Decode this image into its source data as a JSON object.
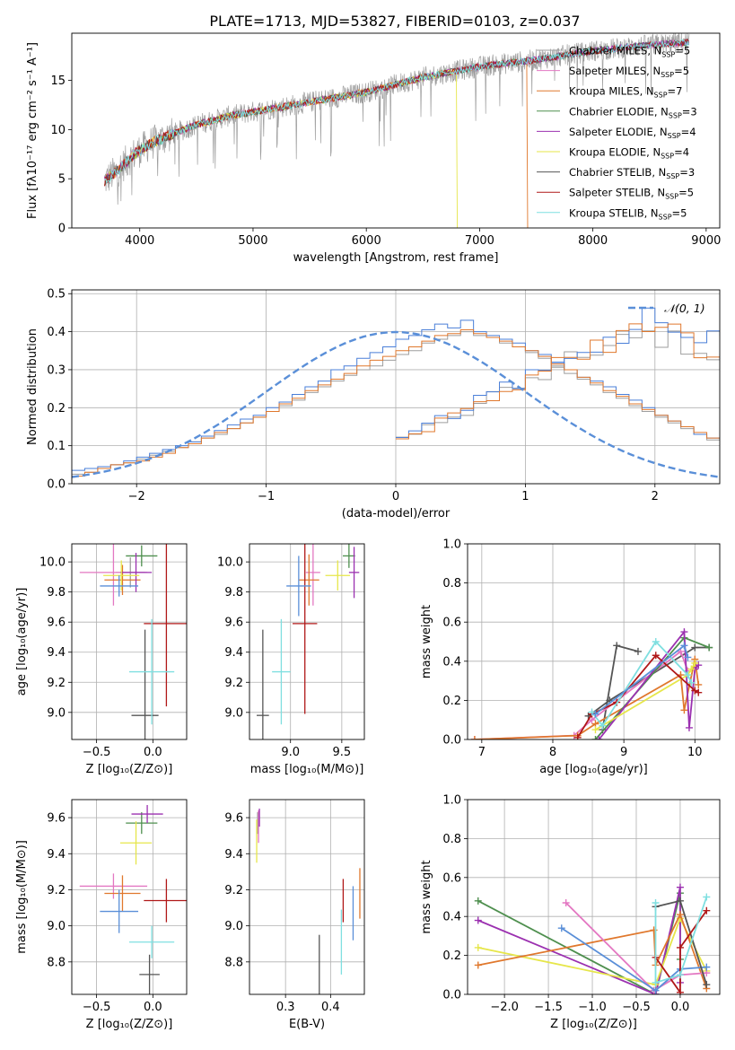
{
  "title": "PLATE=1713, MJD=53827, FIBERID=0103, z=0.037",
  "chart_data": [
    {
      "id": "spectrum",
      "type": "line",
      "title": "PLATE=1713, MJD=53827, FIBERID=0103, z=0.037",
      "xlabel": "wavelength [Angstrom, rest frame]",
      "ylabel": "Flux [fλ10⁻¹⁷ erg cm⁻² s⁻¹ A⁻¹]",
      "xlim": [
        3400,
        9120
      ],
      "ylim": [
        0,
        19.8
      ],
      "xticks": [
        4000,
        5000,
        6000,
        7000,
        8000,
        9000
      ],
      "yticks": [
        0,
        5,
        10,
        15
      ],
      "grid": false,
      "legend_position": "top-right",
      "continuum_anchors": [
        [
          3690,
          4.8
        ],
        [
          3800,
          5.8
        ],
        [
          3950,
          7.5
        ],
        [
          4100,
          8.6
        ],
        [
          4300,
          9.6
        ],
        [
          4500,
          10.5
        ],
        [
          4800,
          11.4
        ],
        [
          5000,
          11.8
        ],
        [
          5200,
          12.2
        ],
        [
          5500,
          12.8
        ],
        [
          6000,
          13.8
        ],
        [
          6500,
          15.3
        ],
        [
          7000,
          16.4
        ],
        [
          7500,
          17.1
        ],
        [
          8000,
          18.0
        ],
        [
          8500,
          18.6
        ],
        [
          8850,
          18.9
        ]
      ],
      "data_range": [
        3690,
        8850
      ],
      "series": [
        {
          "name": "Chabrier MILES, N_SSP=5",
          "label_main": "Chabrier MILES, N",
          "label_sub": "SSP",
          "label_tail": "=5",
          "color": "#9e9e9e"
        },
        {
          "name": "Salpeter MILES, N_SSP=5",
          "label_main": "Salpeter MILES, N",
          "label_sub": "SSP",
          "label_tail": "=5",
          "color": "#e377c2"
        },
        {
          "name": "Kroupa MILES, N_SSP=7",
          "label_main": "Kroupa MILES, N",
          "label_sub": "SSP",
          "label_tail": "=7",
          "color": "#e0782d",
          "drop_at": 7420
        },
        {
          "name": "Chabrier ELODIE, N_SSP=3",
          "label_main": "Chabrier ELODIE, N",
          "label_sub": "SSP",
          "label_tail": "=3",
          "color": "#4e8f4e"
        },
        {
          "name": "Salpeter ELODIE, N_SSP=4",
          "label_main": "Salpeter ELODIE, N",
          "label_sub": "SSP",
          "label_tail": "=4",
          "color": "#9b30b0"
        },
        {
          "name": "Kroupa ELODIE, N_SSP=4",
          "label_main": "Kroupa ELODIE, N",
          "label_sub": "SSP",
          "label_tail": "=4",
          "color": "#e6e64a",
          "drop_at": 6800
        },
        {
          "name": "Chabrier STELIB, N_SSP=3",
          "label_main": "Chabrier STELIB, N",
          "label_sub": "SSP",
          "label_tail": "=3",
          "color": "#555555"
        },
        {
          "name": "Salpeter STELIB, N_SSP=5",
          "label_main": "Salpeter STELIB, N",
          "label_sub": "SSP",
          "label_tail": "=5",
          "color": "#b01818"
        },
        {
          "name": "Kroupa STELIB, N_SSP=5",
          "label_main": "Kroupa STELIB, N",
          "label_sub": "SSP",
          "label_tail": "=5",
          "color": "#7fdfe0"
        }
      ]
    },
    {
      "id": "residuals",
      "type": "bar",
      "xlabel": "(data-model)/error",
      "ylabel": "Normed distribution",
      "xlim": [
        -2.5,
        2.5
      ],
      "ylim": [
        0,
        0.51
      ],
      "xticks": [
        -2,
        -1,
        0,
        1,
        2
      ],
      "yticks": [
        0.0,
        0.1,
        0.2,
        0.3,
        0.4,
        0.5
      ],
      "grid": true,
      "legend": "𝒩(0, 1)",
      "legend_position": "top-right",
      "bin_width": 0.1,
      "series": [
        {
          "color": "#9e9e9e",
          "values": [
            0.025,
            0.03,
            0.04,
            0.05,
            0.055,
            0.065,
            0.075,
            0.085,
            0.095,
            0.11,
            0.12,
            0.13,
            0.145,
            0.16,
            0.175,
            0.19,
            0.205,
            0.22,
            0.24,
            0.255,
            0.27,
            0.285,
            0.3,
            0.31,
            0.325,
            0.34,
            0.35,
            0.37,
            0.38,
            0.39,
            0.4,
            0.39,
            0.385,
            0.37,
            0.36,
            0.345,
            0.33,
            0.31,
            0.29,
            0.275,
            0.26,
            0.24,
            0.225,
            0.205,
            0.19,
            0.175,
            0.16,
            0.145,
            0.13,
            0.115
          ]
        },
        {
          "color": "#4a7fd8",
          "values": [
            0.035,
            0.04,
            0.045,
            0.05,
            0.06,
            0.07,
            0.08,
            0.09,
            0.1,
            0.11,
            0.125,
            0.14,
            0.155,
            0.17,
            0.18,
            0.2,
            0.215,
            0.235,
            0.255,
            0.27,
            0.3,
            0.31,
            0.33,
            0.345,
            0.36,
            0.38,
            0.39,
            0.405,
            0.42,
            0.41,
            0.43,
            0.4,
            0.39,
            0.38,
            0.37,
            0.35,
            0.34,
            0.32,
            0.3,
            0.28,
            0.27,
            0.255,
            0.235,
            0.22,
            0.2,
            0.18,
            0.165,
            0.15,
            0.13,
            0.12
          ]
        },
        {
          "color": "#e0782d",
          "values": [
            0.02,
            0.03,
            0.04,
            0.05,
            0.055,
            0.06,
            0.07,
            0.08,
            0.095,
            0.105,
            0.12,
            0.135,
            0.145,
            0.16,
            0.175,
            0.19,
            0.21,
            0.225,
            0.245,
            0.26,
            0.275,
            0.29,
            0.31,
            0.325,
            0.335,
            0.35,
            0.36,
            0.375,
            0.39,
            0.395,
            0.405,
            0.395,
            0.385,
            0.375,
            0.36,
            0.35,
            0.335,
            0.315,
            0.3,
            0.28,
            0.265,
            0.245,
            0.23,
            0.21,
            0.195,
            0.18,
            0.165,
            0.15,
            0.135,
            0.12
          ]
        }
      ],
      "gaussian": {
        "mean": 0,
        "sigma": 1,
        "color": "#5a8fd8",
        "style": "dashed"
      }
    },
    {
      "id": "age-vs-Z",
      "type": "scatter",
      "xlabel": "Z [log₁₀(Z/Z⊙)]",
      "ylabel": "age  [log₁₀(age/yr)]",
      "xlim": [
        -0.72,
        0.3
      ],
      "ylim": [
        8.82,
        10.12
      ],
      "xticks": [
        -0.5,
        0.0
      ],
      "yticks": [
        9.0,
        9.2,
        9.4,
        9.6,
        9.8,
        10.0
      ],
      "grid": true,
      "errorbars": [
        {
          "color": "#9e9e9e",
          "x": -0.2,
          "xerr": 0.13,
          "y": 9.93,
          "yerr": 0.1
        },
        {
          "color": "#e377c2",
          "x": -0.35,
          "xerr": 0.3,
          "y": 9.93,
          "yerr": 0.22
        },
        {
          "color": "#e0782d",
          "x": -0.27,
          "xerr": 0.16,
          "y": 9.88,
          "yerr": 0.1
        },
        {
          "color": "#4e8f4e",
          "x": -0.1,
          "xerr": 0.14,
          "y": 10.04,
          "yerr": 0.07
        },
        {
          "color": "#9b30b0",
          "x": -0.15,
          "xerr": 0.14,
          "y": 9.93,
          "yerr": 0.13
        },
        {
          "color": "#e6e64a",
          "x": -0.28,
          "xerr": 0.16,
          "y": 9.91,
          "yerr": 0.1
        },
        {
          "color": "#555555",
          "x": -0.07,
          "xerr": 0.12,
          "y": 8.98,
          "yerr": 0.57
        },
        {
          "color": "#b01818",
          "x": 0.12,
          "xerr": 0.2,
          "y": 9.59,
          "yerr": 0.55
        },
        {
          "color": "#7fdfe0",
          "x": -0.01,
          "xerr": 0.2,
          "y": 9.27,
          "yerr": 0.35
        },
        {
          "color": "#5a8fd8",
          "x": -0.3,
          "xerr": 0.17,
          "y": 9.84,
          "yerr": 0.07
        }
      ]
    },
    {
      "id": "age-vs-mass",
      "type": "scatter",
      "xlabel": "mass [log₁₀(M/M⊙)]",
      "ylabel": "",
      "xlim": [
        8.6,
        9.72
      ],
      "ylim": [
        8.82,
        10.12
      ],
      "xticks": [
        9.0,
        9.5
      ],
      "yticks": [
        9.0,
        9.2,
        9.4,
        9.6,
        9.8,
        10.0
      ],
      "grid": true,
      "errorbars": [
        {
          "color": "#e377c2",
          "x": 9.22,
          "xerr": 0.07,
          "y": 9.93,
          "yerr": 0.22
        },
        {
          "color": "#e0782d",
          "x": 9.18,
          "xerr": 0.1,
          "y": 9.88,
          "yerr": 0.17
        },
        {
          "color": "#4e8f4e",
          "x": 9.57,
          "xerr": 0.06,
          "y": 10.04,
          "yerr": 0.08
        },
        {
          "color": "#9b30b0",
          "x": 9.62,
          "xerr": 0.05,
          "y": 9.93,
          "yerr": 0.17
        },
        {
          "color": "#e6e64a",
          "x": 9.46,
          "xerr": 0.12,
          "y": 9.91,
          "yerr": 0.1
        },
        {
          "color": "#555555",
          "x": 8.73,
          "xerr": 0.06,
          "y": 8.98,
          "yerr": 0.57
        },
        {
          "color": "#b01818",
          "x": 9.14,
          "xerr": 0.12,
          "y": 9.59,
          "yerr": 0.6
        },
        {
          "color": "#7fdfe0",
          "x": 8.91,
          "xerr": 0.09,
          "y": 9.27,
          "yerr": 0.35
        },
        {
          "color": "#5a8fd8",
          "x": 9.08,
          "xerr": 0.12,
          "y": 9.84,
          "yerr": 0.2
        }
      ]
    },
    {
      "id": "mass-weight-vs-age",
      "type": "line",
      "xlabel": "age  [log₁₀(age/yr)]",
      "ylabel": "mass weight",
      "xlim": [
        6.8,
        10.35
      ],
      "ylim": [
        0,
        1.0
      ],
      "xticks": [
        7,
        8,
        9,
        10
      ],
      "yticks": [
        0.0,
        0.2,
        0.4,
        0.6,
        0.8,
        1.0
      ],
      "grid": true,
      "series": [
        {
          "color": "#555555",
          "x": [
            8.7,
            8.9,
            9.2
          ],
          "y": [
            0.05,
            0.48,
            0.45
          ]
        },
        {
          "color": "#555555",
          "x": [
            8.5,
            8.8,
            10.0,
            10.2
          ],
          "y": [
            0.12,
            0.2,
            0.47,
            0.47
          ]
        },
        {
          "color": "#e377c2",
          "x": [
            6.9,
            8.3,
            8.55,
            9.8,
            9.9
          ],
          "y": [
            0.0,
            0.02,
            0.1,
            0.45,
            0.35
          ]
        },
        {
          "color": "#e0782d",
          "x": [
            6.9,
            8.35,
            8.6,
            9.8,
            9.85,
            10.0,
            10.05
          ],
          "y": [
            0.0,
            0.02,
            0.08,
            0.33,
            0.15,
            0.41,
            0.28
          ]
        },
        {
          "color": "#4e8f4e",
          "x": [
            8.6,
            9.85,
            10.2
          ],
          "y": [
            0.0,
            0.52,
            0.47
          ]
        },
        {
          "color": "#9b30b0",
          "x": [
            8.65,
            9.85,
            9.92,
            10.0,
            10.05
          ],
          "y": [
            0.0,
            0.55,
            0.06,
            0.36,
            0.38
          ]
        },
        {
          "color": "#e6e64a",
          "x": [
            8.6,
            9.9,
            9.95,
            10.0
          ],
          "y": [
            0.05,
            0.33,
            0.36,
            0.39
          ]
        },
        {
          "color": "#b01818",
          "x": [
            8.35,
            8.55,
            8.9,
            9.45,
            10.0,
            10.05
          ],
          "y": [
            0.01,
            0.13,
            0.19,
            0.43,
            0.25,
            0.24
          ]
        },
        {
          "color": "#7fdfe0",
          "x": [
            8.55,
            8.7,
            9.45,
            9.9,
            9.95
          ],
          "y": [
            0.14,
            0.07,
            0.5,
            0.33,
            0.29
          ]
        },
        {
          "color": "#5a8fd8",
          "x": [
            8.6,
            9.85,
            9.9
          ],
          "y": [
            0.13,
            0.48,
            0.42
          ]
        }
      ]
    },
    {
      "id": "mass-vs-Z",
      "type": "scatter",
      "xlabel": "Z [log₁₀(Z/Z⊙)]",
      "ylabel": "mass [log₁₀(M/M⊙)]",
      "xlim": [
        -0.72,
        0.3
      ],
      "ylim": [
        8.62,
        9.7
      ],
      "xticks": [
        -0.5,
        0.0
      ],
      "yticks": [
        8.8,
        9.0,
        9.2,
        9.4,
        9.6
      ],
      "grid": true,
      "errorbars": [
        {
          "color": "#e377c2",
          "x": -0.35,
          "xerr": 0.3,
          "y": 9.22,
          "yerr": 0.07
        },
        {
          "color": "#e0782d",
          "x": -0.27,
          "xerr": 0.16,
          "y": 9.18,
          "yerr": 0.1
        },
        {
          "color": "#4e8f4e",
          "x": -0.1,
          "xerr": 0.14,
          "y": 9.57,
          "yerr": 0.06
        },
        {
          "color": "#9b30b0",
          "x": -0.05,
          "xerr": 0.14,
          "y": 9.62,
          "yerr": 0.05
        },
        {
          "color": "#e6e64a",
          "x": -0.15,
          "xerr": 0.14,
          "y": 9.46,
          "yerr": 0.12
        },
        {
          "color": "#555555",
          "x": -0.03,
          "xerr": 0.09,
          "y": 8.73,
          "yerr": 0.11
        },
        {
          "color": "#b01818",
          "x": 0.12,
          "xerr": 0.2,
          "y": 9.14,
          "yerr": 0.12
        },
        {
          "color": "#7fdfe0",
          "x": -0.01,
          "xerr": 0.2,
          "y": 8.91,
          "yerr": 0.09
        },
        {
          "color": "#5a8fd8",
          "x": -0.3,
          "xerr": 0.17,
          "y": 9.08,
          "yerr": 0.12
        }
      ]
    },
    {
      "id": "mass-vs-ebv",
      "type": "scatter",
      "xlabel": "E(B-V)",
      "ylabel": "",
      "xlim": [
        0.22,
        0.475
      ],
      "ylim": [
        8.62,
        9.7
      ],
      "xticks": [
        0.3,
        0.4
      ],
      "yticks": [
        8.8,
        9.0,
        9.2,
        9.4,
        9.6
      ],
      "grid": true,
      "errorbars": [
        {
          "color": "#9e9e9e",
          "x": 0.238,
          "xerr": 0,
          "y": 9.57,
          "yerr": 0.06
        },
        {
          "color": "#e377c2",
          "x": 0.24,
          "xerr": 0,
          "y": 9.55,
          "yerr": 0.09
        },
        {
          "color": "#9b30b0",
          "x": 0.242,
          "xerr": 0,
          "y": 9.6,
          "yerr": 0.05
        },
        {
          "color": "#e6e64a",
          "x": 0.236,
          "xerr": 0,
          "y": 9.47,
          "yerr": 0.12
        },
        {
          "color": "#555555",
          "x": 0.375,
          "xerr": 0,
          "y": 8.78,
          "yerr": 0.17
        },
        {
          "color": "#b01818",
          "x": 0.428,
          "xerr": 0,
          "y": 9.14,
          "yerr": 0.12
        },
        {
          "color": "#7fdfe0",
          "x": 0.424,
          "xerr": 0,
          "y": 8.91,
          "yerr": 0.18
        },
        {
          "color": "#5a8fd8",
          "x": 0.45,
          "xerr": 0,
          "y": 9.07,
          "yerr": 0.15
        },
        {
          "color": "#e0782d",
          "x": 0.465,
          "xerr": 0,
          "y": 9.18,
          "yerr": 0.14
        }
      ]
    },
    {
      "id": "mass-weight-vs-Z",
      "type": "line",
      "xlabel": "Z [log₁₀(Z/Z⊙)]",
      "ylabel": "mass weight",
      "xlim": [
        -2.42,
        0.45
      ],
      "ylim": [
        0,
        1.0
      ],
      "xticks": [
        -2.0,
        -1.5,
        -1.0,
        -0.5,
        0.0
      ],
      "yticks": [
        0.0,
        0.2,
        0.4,
        0.6,
        0.8,
        1.0
      ],
      "grid": true,
      "series": [
        {
          "color": "#4e8f4e",
          "x": [
            -2.3,
            -0.28,
            0.0,
            0.0
          ],
          "y": [
            0.48,
            0.0,
            0.52,
            0.18
          ]
        },
        {
          "color": "#9b30b0",
          "x": [
            -2.3,
            -0.28,
            0.0,
            0.0
          ],
          "y": [
            0.38,
            0.0,
            0.55,
            0.06
          ]
        },
        {
          "color": "#e6e64a",
          "x": [
            -2.3,
            -0.28,
            0.0,
            0.3
          ],
          "y": [
            0.24,
            0.05,
            0.39,
            0.12
          ]
        },
        {
          "color": "#e0782d",
          "x": [
            -2.3,
            -0.3,
            -0.28,
            0.0,
            0.3
          ],
          "y": [
            0.15,
            0.33,
            0.15,
            0.41,
            0.03
          ]
        },
        {
          "color": "#e377c2",
          "x": [
            -1.3,
            -0.3,
            0.0,
            0.3
          ],
          "y": [
            0.47,
            0.02,
            0.1,
            0.11
          ]
        },
        {
          "color": "#5a8fd8",
          "x": [
            -1.35,
            -0.28,
            0.0,
            0.3
          ],
          "y": [
            0.34,
            0.02,
            0.13,
            0.14
          ]
        },
        {
          "color": "#555555",
          "x": [
            -0.28,
            0.0,
            0.3
          ],
          "y": [
            0.45,
            0.48,
            0.05
          ]
        },
        {
          "color": "#b01818",
          "x": [
            -0.28,
            0.0,
            0.0,
            0.3
          ],
          "y": [
            0.19,
            0.01,
            0.24,
            0.43
          ]
        },
        {
          "color": "#7fdfe0",
          "x": [
            -0.28,
            -0.28,
            0.0,
            0.3
          ],
          "y": [
            0.47,
            0.06,
            0.1,
            0.5
          ]
        }
      ]
    }
  ]
}
